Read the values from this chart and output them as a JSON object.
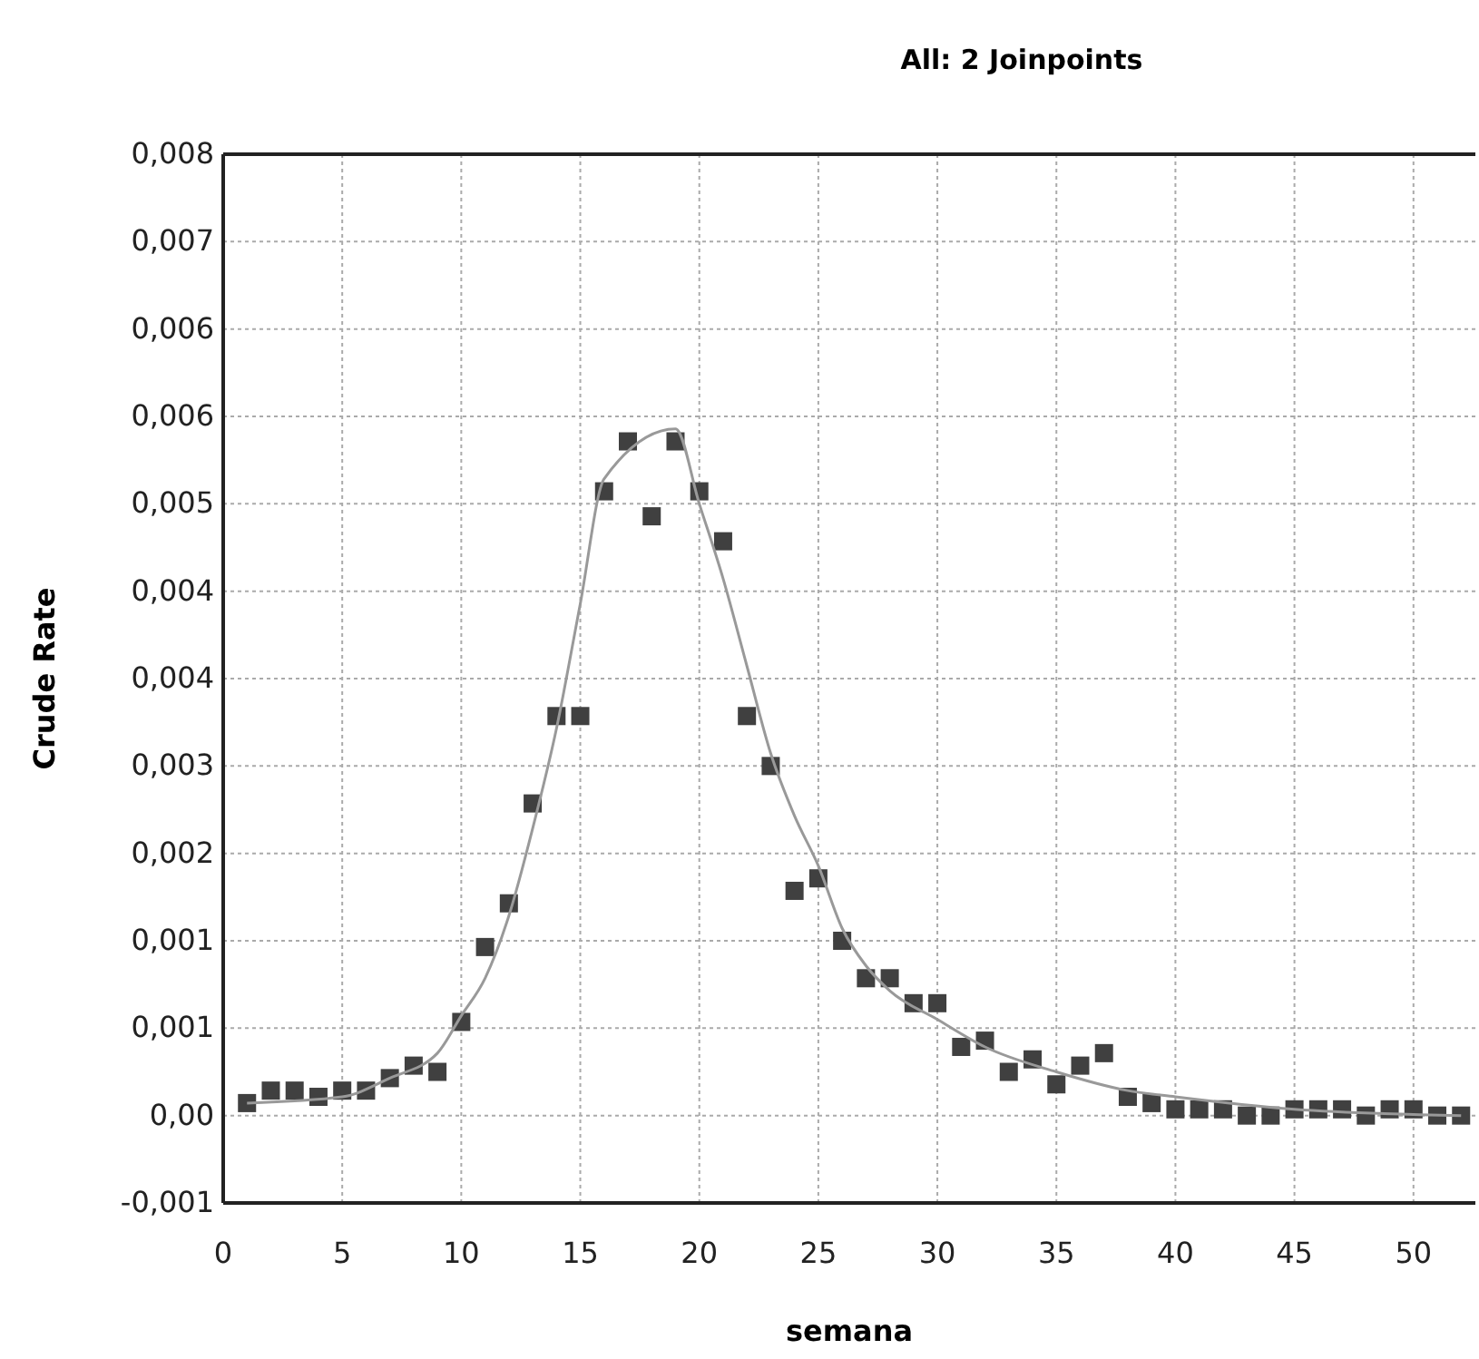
{
  "chart_data": {
    "type": "scatter",
    "title": "All: 2 Joinpoints",
    "xlabel": "semana",
    "ylabel": "Crude Rate",
    "xlim": [
      0,
      52.6
    ],
    "xticks": [
      0,
      5,
      10,
      15,
      20,
      25,
      30,
      35,
      40,
      45,
      50
    ],
    "ylim": [
      -0.0007,
      0.0077
    ],
    "yticks": [
      {
        "value": -0.0007,
        "label": "-0,001"
      },
      {
        "value": 0,
        "label": "0,00"
      },
      {
        "value": 0.0007,
        "label": "0,001"
      },
      {
        "value": 0.0014,
        "label": "0,001"
      },
      {
        "value": 0.0021,
        "label": "0,002"
      },
      {
        "value": 0.0028,
        "label": "0,003"
      },
      {
        "value": 0.0035,
        "label": "0,004"
      },
      {
        "value": 0.0042,
        "label": "0,004"
      },
      {
        "value": 0.0049,
        "label": "0,005"
      },
      {
        "value": 0.0056,
        "label": "0,006"
      },
      {
        "value": 0.0063,
        "label": "0,006"
      },
      {
        "value": 0.007,
        "label": "0,007"
      },
      {
        "value": 0.0077,
        "label": "0,008"
      }
    ],
    "grid": true,
    "marker": "square",
    "series": [
      {
        "color": "#404040",
        "x": [
          1,
          2,
          3,
          4,
          5,
          6,
          7,
          8,
          9,
          10,
          11,
          12,
          13,
          14,
          15,
          16,
          17,
          18,
          19,
          20,
          21,
          22,
          23,
          24,
          25,
          26,
          27,
          28,
          29,
          30,
          31,
          32,
          33,
          34,
          35,
          36,
          37,
          38,
          39,
          40,
          41,
          42,
          43,
          44,
          45,
          46,
          47,
          48,
          49,
          50,
          51,
          52
        ],
        "values": [
          0.0001,
          0.0002,
          0.0002,
          0.00015,
          0.0002,
          0.0002,
          0.0003,
          0.0004,
          0.00035,
          0.00075,
          0.00135,
          0.0017,
          0.0025,
          0.0032,
          0.0032,
          0.005,
          0.0054,
          0.0048,
          0.0054,
          0.005,
          0.0046,
          0.0032,
          0.0028,
          0.0018,
          0.0019,
          0.0014,
          0.0011,
          0.0011,
          0.0009,
          0.0009,
          0.00055,
          0.0006,
          0.00035,
          0.00045,
          0.00025,
          0.0004,
          0.0005,
          0.00015,
          0.0001,
          5e-05,
          5e-05,
          5e-05,
          0,
          0,
          5e-05,
          5e-05,
          5e-05,
          0,
          5e-05,
          5e-05,
          0,
          0
        ]
      },
      {
        "type": "line",
        "color": "#999999",
        "marker": "none",
        "x": [
          1,
          5,
          7,
          9,
          10,
          11,
          12,
          13,
          14,
          15,
          16,
          19,
          20,
          21,
          22,
          23,
          24,
          25,
          26,
          27,
          28,
          30,
          32,
          35,
          38,
          40,
          45,
          52
        ],
        "values": [
          0.0001,
          0.00015,
          0.0003,
          0.0005,
          0.0008,
          0.0011,
          0.0016,
          0.0023,
          0.0031,
          0.0041,
          0.0051,
          0.0055,
          0.0049,
          0.0043,
          0.0036,
          0.0029,
          0.0024,
          0.002,
          0.0015,
          0.0012,
          0.001,
          0.00077,
          0.00055,
          0.00035,
          0.0002,
          0.00015,
          5e-05,
          0
        ]
      }
    ]
  }
}
